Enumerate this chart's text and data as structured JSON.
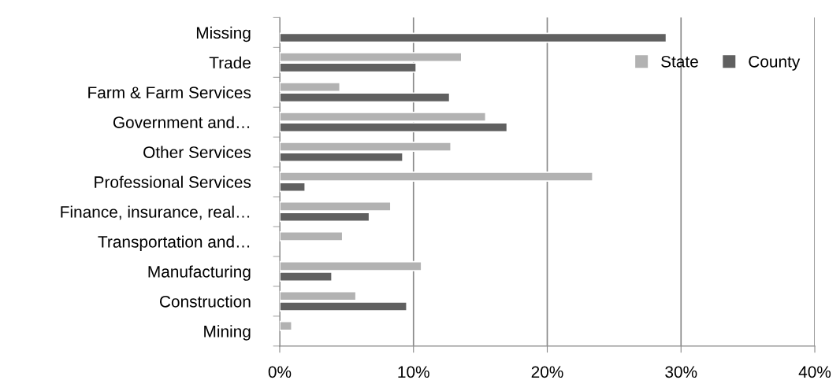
{
  "chart_data": {
    "type": "bar",
    "orientation": "horizontal",
    "categories": [
      "Missing",
      "Trade",
      "Farm & Farm Services",
      "Government and…",
      "Other Services",
      "Professional Services",
      "Finance, insurance, real…",
      "Transportation and…",
      "Manufacturing",
      "Construction",
      "Mining"
    ],
    "series": [
      {
        "name": "State",
        "color": "#b2b2b2",
        "values": [
          null,
          13.6,
          4.5,
          15.4,
          12.8,
          23.4,
          8.3,
          4.7,
          10.6,
          5.7,
          0.9
        ]
      },
      {
        "name": "County",
        "color": "#606060",
        "values": [
          28.9,
          10.2,
          12.7,
          17.0,
          9.2,
          1.9,
          6.7,
          null,
          3.9,
          9.5,
          null
        ]
      }
    ],
    "xlim": [
      0,
      40
    ],
    "xticks": [
      {
        "value": 0,
        "label": "0%"
      },
      {
        "value": 10,
        "label": "10%"
      },
      {
        "value": 20,
        "label": "20%"
      },
      {
        "value": 30,
        "label": "30%"
      },
      {
        "value": 40,
        "label": "40%"
      }
    ],
    "grid": "x",
    "legend": "top right"
  }
}
